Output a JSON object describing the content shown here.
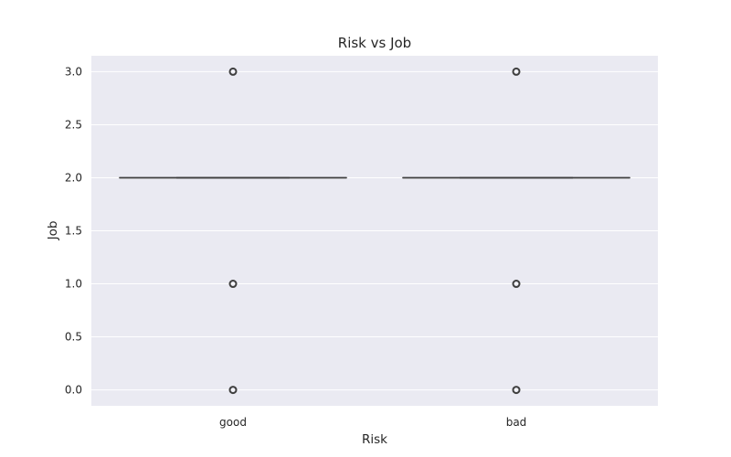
{
  "chart_data": {
    "type": "box",
    "title": "Risk vs Job",
    "xlabel": "Risk",
    "ylabel": "Job",
    "categories": [
      "good",
      "bad"
    ],
    "ylim": [
      -0.15,
      3.15
    ],
    "yticks": [
      0.0,
      0.5,
      1.0,
      1.5,
      2.0,
      2.5,
      3.0
    ],
    "ytick_labels": [
      "0.0",
      "0.5",
      "1.0",
      "1.5",
      "2.0",
      "2.5",
      "3.0"
    ],
    "grid": true,
    "boxes": [
      {
        "category": "good",
        "whisker_low": 2,
        "q1": 2,
        "median": 2,
        "q3": 2,
        "whisker_high": 2,
        "outliers": [
          3,
          1,
          0
        ]
      },
      {
        "category": "bad",
        "whisker_low": 2,
        "q1": 2,
        "median": 2,
        "q3": 2,
        "whisker_high": 2,
        "outliers": [
          3,
          1,
          0
        ]
      }
    ],
    "colors": {
      "background": "#eaeaf2",
      "grid": "#ffffff",
      "box_line": "#3f3f3f",
      "text": "#262626"
    }
  }
}
